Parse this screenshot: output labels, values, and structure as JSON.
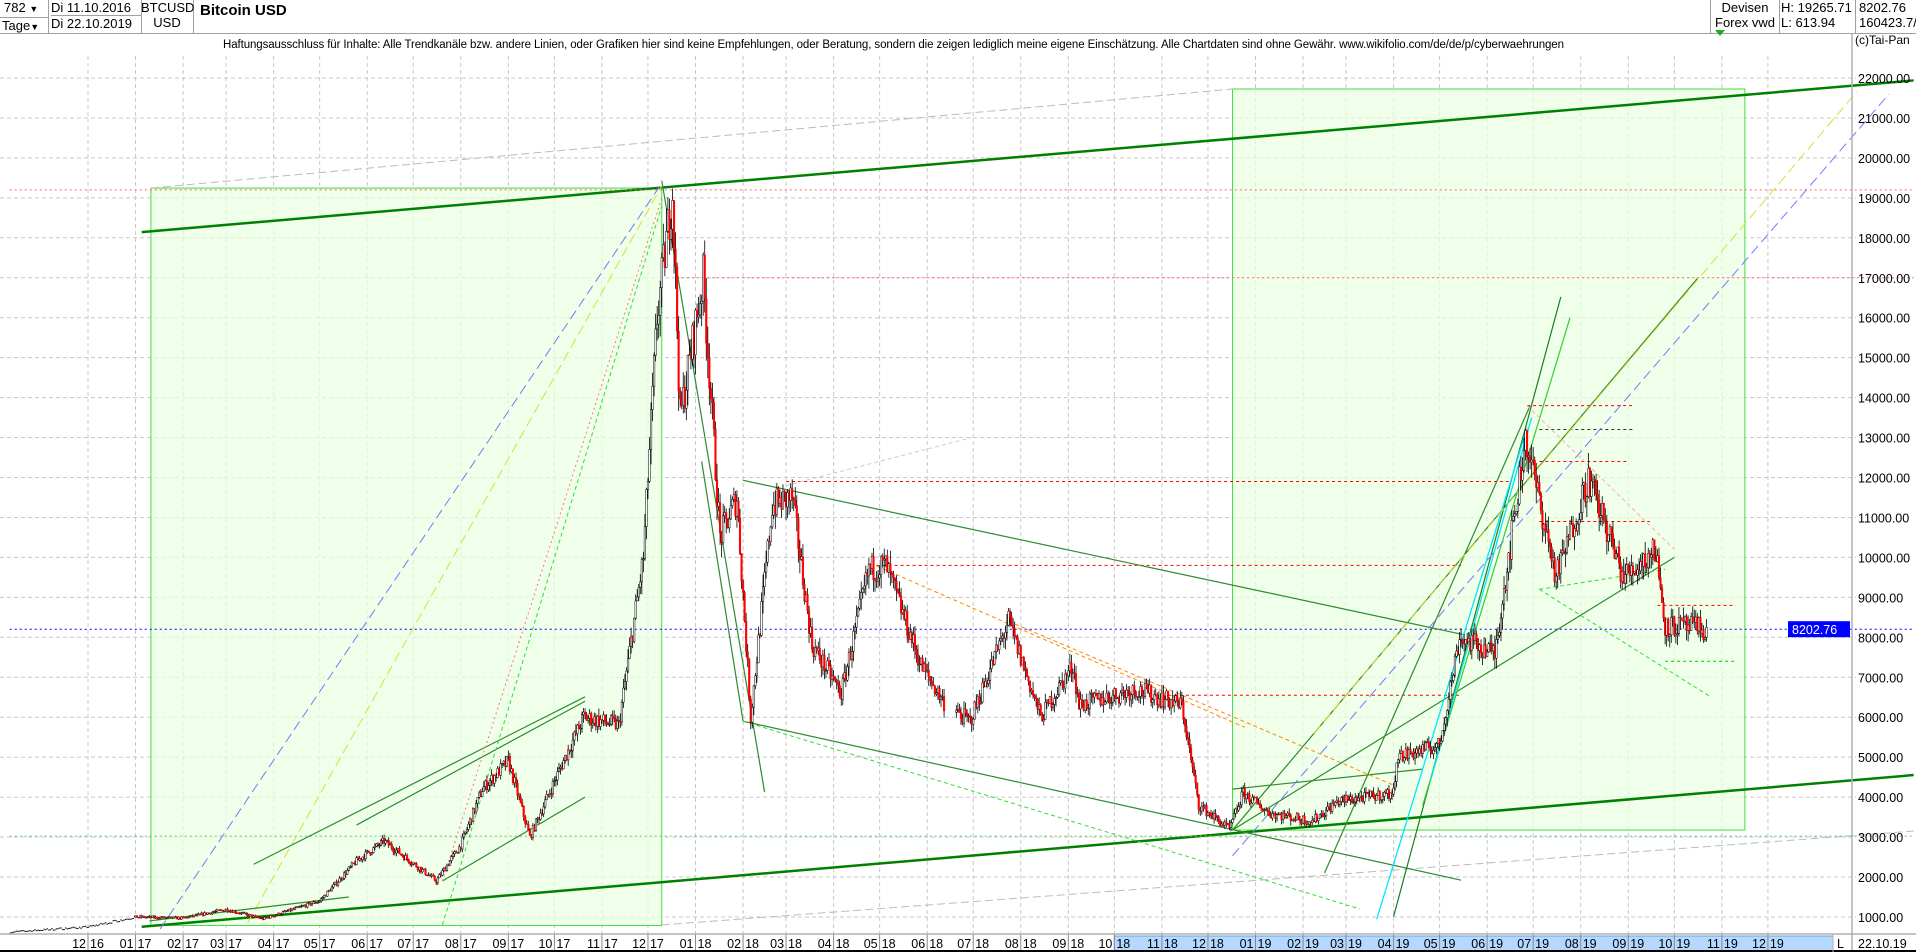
{
  "header": {
    "bars": "782",
    "period": "Tage",
    "date_from": "Di 11.10.2016",
    "date_to": "Di 22.10.2019",
    "symbol": "BTCUSD",
    "currency": "USD",
    "title": "Bitcoin USD",
    "market": "Devisen",
    "exchange": "Forex vwd",
    "high": "H: 19265.71",
    "low": "L: 613.94",
    "last": "8202.76",
    "volume": "160423.7/",
    "copyright": "(c)Tai-Pan"
  },
  "disclaimer": "Haftungsausschluss für Inhalte: Alle Trendkanäle bzw. andere Linien, oder Grafiken hier sind keine Empfehlungen, oder Beratung, sondern die zeigen lediglich meine eigene Einschätzung. Alle Chartdaten sind ohne Gewähr.  www.wikifolio.com/de/de/p/cyberwaehrungen",
  "footer": {
    "scale_mode": "L",
    "last_date": "22.10.19"
  },
  "chart_data": {
    "type": "candlestick",
    "title": "Bitcoin USD",
    "x_range": [
      "2016-10-11",
      "2020-03-05"
    ],
    "ylim": [
      600,
      22600
    ],
    "grid": true,
    "y_ticks": [
      "1000.00",
      "2000.00",
      "3000.00",
      "4000.00",
      "5000.00",
      "6000.00",
      "7000.00",
      "8000.00",
      "9000.00",
      "10000.00",
      "11000.00",
      "12000.00",
      "13000.00",
      "14000.00",
      "15000.00",
      "16000.00",
      "17000.00",
      "18000.00",
      "19000.00",
      "20000.00",
      "21000.00",
      "22000.00"
    ],
    "x_ticks": [
      {
        "date": "2016-12-01",
        "label": "12 16"
      },
      {
        "date": "2017-01-01",
        "label": "01 17"
      },
      {
        "date": "2017-02-01",
        "label": "02 17"
      },
      {
        "date": "2017-03-01",
        "label": "03 17"
      },
      {
        "date": "2017-04-01",
        "label": "04 17"
      },
      {
        "date": "2017-05-01",
        "label": "05 17"
      },
      {
        "date": "2017-06-01",
        "label": "06 17"
      },
      {
        "date": "2017-07-01",
        "label": "07 17"
      },
      {
        "date": "2017-08-01",
        "label": "08 17"
      },
      {
        "date": "2017-09-01",
        "label": "09 17"
      },
      {
        "date": "2017-10-01",
        "label": "10 17"
      },
      {
        "date": "2017-11-01",
        "label": "11 17"
      },
      {
        "date": "2017-12-01",
        "label": "12 17"
      },
      {
        "date": "2018-01-01",
        "label": "01 18"
      },
      {
        "date": "2018-02-01",
        "label": "02 18"
      },
      {
        "date": "2018-03-01",
        "label": "03 18"
      },
      {
        "date": "2018-04-01",
        "label": "04 18"
      },
      {
        "date": "2018-05-01",
        "label": "05 18"
      },
      {
        "date": "2018-06-01",
        "label": "06 18"
      },
      {
        "date": "2018-07-01",
        "label": "07 18"
      },
      {
        "date": "2018-08-01",
        "label": "08 18"
      },
      {
        "date": "2018-09-01",
        "label": "09 18"
      },
      {
        "date": "2018-10-01",
        "label": "10 18"
      },
      {
        "date": "2018-11-01",
        "label": "11 18"
      },
      {
        "date": "2018-12-01",
        "label": "12 18"
      },
      {
        "date": "2019-01-01",
        "label": "01 19"
      },
      {
        "date": "2019-02-01",
        "label": "02 19"
      },
      {
        "date": "2019-03-01",
        "label": "03 19"
      },
      {
        "date": "2019-04-01",
        "label": "04 19"
      },
      {
        "date": "2019-05-01",
        "label": "05 19"
      },
      {
        "date": "2019-06-01",
        "label": "06 19"
      },
      {
        "date": "2019-07-01",
        "label": "07 19"
      },
      {
        "date": "2019-08-01",
        "label": "08 19"
      },
      {
        "date": "2019-09-01",
        "label": "09 19"
      },
      {
        "date": "2019-10-01",
        "label": "10 19"
      },
      {
        "date": "2019-11-01",
        "label": "11 19"
      },
      {
        "date": "2019-12-01",
        "label": "12 19"
      }
    ],
    "highlight_range": [
      "2018-10-01",
      "2020-01-15"
    ],
    "last_price": 8202.76,
    "last_price_label": "8202.76",
    "price_path": [
      [
        "2016-10-11",
        620
      ],
      [
        "2016-12-01",
        750
      ],
      [
        "2017-01-01",
        1000
      ],
      [
        "2017-02-01",
        970
      ],
      [
        "2017-03-01",
        1190
      ],
      [
        "2017-03-25",
        950
      ],
      [
        "2017-05-01",
        1400
      ],
      [
        "2017-05-25",
        2400
      ],
      [
        "2017-06-12",
        2900
      ],
      [
        "2017-07-16",
        1900
      ],
      [
        "2017-08-01",
        2800
      ],
      [
        "2017-08-15",
        4200
      ],
      [
        "2017-09-01",
        4900
      ],
      [
        "2017-09-15",
        3000
      ],
      [
        "2017-10-01",
        4400
      ],
      [
        "2017-10-20",
        6000
      ],
      [
        "2017-11-12",
        5800
      ],
      [
        "2017-11-28",
        10000
      ],
      [
        "2017-12-07",
        16000
      ],
      [
        "2017-12-17",
        19200
      ],
      [
        "2017-12-22",
        13500
      ],
      [
        "2018-01-06",
        17000
      ],
      [
        "2018-01-17",
        10500
      ],
      [
        "2018-01-28",
        11500
      ],
      [
        "2018-02-06",
        6000
      ],
      [
        "2018-02-20",
        11300
      ],
      [
        "2018-03-05",
        11500
      ],
      [
        "2018-03-18",
        7800
      ],
      [
        "2018-04-06",
        6600
      ],
      [
        "2018-04-24",
        9700
      ],
      [
        "2018-05-05",
        9800
      ],
      [
        "2018-05-28",
        7300
      ],
      [
        "2018-06-13",
        6300
      ],
      [
        "2018-06-29",
        5900
      ],
      [
        "2018-07-24",
        8400
      ],
      [
        "2018-08-14",
        6000
      ],
      [
        "2018-09-04",
        7300
      ],
      [
        "2018-09-08",
        6300
      ],
      [
        "2018-10-15",
        6700
      ],
      [
        "2018-11-14",
        6300
      ],
      [
        "2018-11-25",
        3800
      ],
      [
        "2018-12-15",
        3200
      ],
      [
        "2018-12-24",
        4100
      ],
      [
        "2019-01-10",
        3600
      ],
      [
        "2019-02-07",
        3400
      ],
      [
        "2019-02-24",
        3900
      ],
      [
        "2019-04-01",
        4100
      ],
      [
        "2019-04-03",
        5000
      ],
      [
        "2019-05-01",
        5300
      ],
      [
        "2019-05-14",
        8000
      ],
      [
        "2019-06-06",
        7600
      ],
      [
        "2019-06-26",
        13000
      ],
      [
        "2019-07-16",
        9500
      ],
      [
        "2019-08-06",
        12000
      ],
      [
        "2019-08-29",
        9500
      ],
      [
        "2019-09-19",
        10200
      ],
      [
        "2019-09-25",
        8300
      ],
      [
        "2019-10-22",
        8200
      ]
    ],
    "colors": {
      "up": "#ffffff",
      "down": "#ff0000",
      "wick": "#000000",
      "last_price": "#0000ff",
      "box_fill": "#e8ffe0",
      "box_stroke": "#44dd44"
    },
    "boxes": [
      {
        "from": "2017-01-11",
        "to": "2017-12-10",
        "low": 787,
        "high": 19245
      },
      {
        "from": "2018-12-17",
        "to": "2019-11-16",
        "low": 3175,
        "high": 21725
      }
    ],
    "lines": [
      {
        "from": [
          "2017-01-05",
          18143
        ],
        "to": [
          "2020-03-05",
          21939
        ],
        "color": "#008000",
        "width": 2.5,
        "dash": ""
      },
      {
        "from": [
          "2017-01-05",
          756
        ],
        "to": [
          "2020-03-05",
          4552
        ],
        "color": "#008000",
        "width": 2.5,
        "dash": ""
      },
      {
        "from": [
          "2017-01-11",
          19245
        ],
        "to": [
          "2018-12-17",
          21725
        ],
        "color": "#bbbbbb",
        "width": 1,
        "dash": "8,4"
      },
      {
        "from": [
          "2017-12-10",
          800
        ],
        "to": [
          "2020-03-05",
          3150
        ],
        "color": "#bbbbbb",
        "width": 1,
        "dash": "8,4"
      },
      {
        "from": [
          "2016-10-11",
          19200
        ],
        "to": [
          "2020-03-05",
          19200
        ],
        "color": "#ff6666",
        "width": 1,
        "dash": "2,3"
      },
      {
        "from": [
          "2017-12-20",
          17000
        ],
        "to": [
          "2020-03-05",
          17000
        ],
        "color": "#ff6666",
        "width": 1,
        "dash": "2,3"
      },
      {
        "from": [
          "2016-10-11",
          3022
        ],
        "to": [
          "2020-03-05",
          3022
        ],
        "color": "#66cc66",
        "width": 1,
        "dash": "2,3"
      },
      {
        "from": [
          "2018-04-29",
          9800
        ],
        "to": [
          "2019-05-15",
          9800
        ],
        "color": "#ff0000",
        "width": 1,
        "dash": "3,3"
      },
      {
        "from": [
          "2018-11-01",
          6550
        ],
        "to": [
          "2019-05-15",
          6550
        ],
        "color": "#ff0000",
        "width": 1,
        "dash": "3,3"
      },
      {
        "from": [
          "2018-03-01",
          11900
        ],
        "to": [
          "2019-06-15",
          11900
        ],
        "color": "#ff0000",
        "width": 1,
        "dash": "3,3"
      },
      {
        "from": [
          "2019-06-27",
          13800
        ],
        "to": [
          "2019-09-05",
          13800
        ],
        "color": "#ff0000",
        "width": 1,
        "dash": "3,3"
      },
      {
        "from": [
          "2019-07-05",
          12400
        ],
        "to": [
          "2019-08-31",
          12400
        ],
        "color": "#ff0000",
        "width": 1,
        "dash": "3,3"
      },
      {
        "from": [
          "2019-07-05",
          13200
        ],
        "to": [
          "2019-09-05",
          13200
        ],
        "color": "#333333",
        "width": 1,
        "dash": "3,3"
      },
      {
        "from": [
          "2019-07-05",
          10900
        ],
        "to": [
          "2019-09-15",
          10900
        ],
        "color": "#ff0000",
        "width": 1,
        "dash": "3,3"
      },
      {
        "from": [
          "2019-09-20",
          8800
        ],
        "to": [
          "2019-11-10",
          8800
        ],
        "color": "#ff0000",
        "width": 1,
        "dash": "3,3"
      },
      {
        "from": [
          "2019-09-25",
          7400
        ],
        "to": [
          "2019-11-10",
          7400
        ],
        "color": "#00cc00",
        "width": 1,
        "dash": "3,3"
      },
      {
        "from": [
          "2016-10-11",
          8202.76
        ],
        "to": [
          "2020-03-05",
          8202.76
        ],
        "color": "#0000ff",
        "width": 1,
        "dash": "2,3"
      },
      {
        "from": [
          "2017-12-10",
          19429
        ],
        "to": [
          "2018-02-15",
          4124
        ],
        "color": "#2e8b2e",
        "width": 1.2,
        "dash": ""
      },
      {
        "from": [
          "2018-01-05",
          12400
        ],
        "to": [
          "2018-02-01",
          5899
        ],
        "color": "#2e8b2e",
        "width": 1.2,
        "dash": ""
      },
      {
        "from": [
          "2018-02-01",
          11929
        ],
        "to": [
          "2019-05-16",
          8072
        ],
        "color": "#2e8b2e",
        "width": 1.2,
        "dash": ""
      },
      {
        "from": [
          "2018-02-01",
          5899
        ],
        "to": [
          "2019-05-15",
          1920
        ],
        "color": "#2e8b2e",
        "width": 1.2,
        "dash": ""
      },
      {
        "from": [
          "2018-02-01",
          5899
        ],
        "to": [
          "2019-03-10",
          1200
        ],
        "color": "#33dd33",
        "width": 1,
        "dash": "4,3"
      },
      {
        "from": [
          "2018-12-17",
          3175
        ],
        "to": [
          "2019-10-16",
          16980
        ],
        "color": "#2e8b2e",
        "width": 1.2,
        "dash": ""
      },
      {
        "from": [
          "2018-12-17",
          3175
        ],
        "to": [
          "2019-10-01",
          10000
        ],
        "color": "#2e8b2e",
        "width": 1.2,
        "dash": ""
      },
      {
        "from": [
          "2018-12-17",
          4200
        ],
        "to": [
          "2019-04-20",
          4700
        ],
        "color": "#2e8b2e",
        "width": 1.2,
        "dash": ""
      },
      {
        "from": [
          "2019-04-01",
          1010
        ],
        "to": [
          "2019-07-19",
          16521
        ],
        "color": "#1e7b1e",
        "width": 1.2,
        "dash": ""
      },
      {
        "from": [
          "2019-04-20",
          3800
        ],
        "to": [
          "2019-07-25",
          16000
        ],
        "color": "#33cc33",
        "width": 1.2,
        "dash": ""
      },
      {
        "from": [
          "2019-03-21",
          940
        ],
        "to": [
          "2019-06-27",
          13245
        ],
        "color": "#00e5ff",
        "width": 1.3,
        "dash": ""
      },
      {
        "from": [
          "2019-04-25",
          4400
        ],
        "to": [
          "2019-06-30",
          13500
        ],
        "color": "#00e5ff",
        "width": 1.3,
        "dash": ""
      },
      {
        "from": [
          "2019-02-15",
          2100
        ],
        "to": [
          "2019-06-29",
          13800
        ],
        "color": "#2e8b2e",
        "width": 1.2,
        "dash": ""
      },
      {
        "from": [
          "2017-01-17",
          700
        ],
        "to": [
          "2017-12-10",
          19367
        ],
        "color": "#7777ff",
        "width": 1,
        "dash": "10,5"
      },
      {
        "from": [
          "2018-12-17",
          2532
        ],
        "to": [
          "2020-02-18",
          21602
        ],
        "color": "#7777ff",
        "width": 1,
        "dash": "10,5"
      },
      {
        "from": [
          "2017-03-15",
          848
        ],
        "to": [
          "2017-12-10",
          19300
        ],
        "color": "#dddd33",
        "width": 1,
        "dash": "10,5"
      },
      {
        "from": [
          "2019-02-08",
          5593
        ],
        "to": [
          "2020-01-28",
          21663
        ],
        "color": "#dddd33",
        "width": 1,
        "dash": "10,5"
      },
      {
        "from": [
          "2017-03-19",
          2318
        ],
        "to": [
          "2017-10-21",
          6511
        ],
        "color": "#2e8b2e",
        "width": 1.2,
        "dash": ""
      },
      {
        "from": [
          "2017-07-20",
          1900
        ],
        "to": [
          "2017-10-21",
          4000
        ],
        "color": "#2e8b2e",
        "width": 1.2,
        "dash": ""
      },
      {
        "from": [
          "2017-05-25",
          3300
        ],
        "to": [
          "2017-10-21",
          6400
        ],
        "color": "#2e8b2e",
        "width": 1.2,
        "dash": ""
      },
      {
        "from": [
          "2017-01-10",
          900
        ],
        "to": [
          "2017-05-20",
          1500
        ],
        "color": "#2e8b2e",
        "width": 1.2,
        "dash": ""
      },
      {
        "from": [
          "2017-07-20",
          800
        ],
        "to": [
          "2017-12-10",
          18800
        ],
        "color": "#33dd33",
        "width": 1,
        "dash": "4,3"
      },
      {
        "from": [
          "2017-07-20",
          1900
        ],
        "to": [
          "2017-12-10",
          19000
        ],
        "color": "#ff7777",
        "width": 1,
        "dash": "2,3"
      },
      {
        "from": [
          "2018-04-29",
          9787
        ],
        "to": [
          "2018-12-25",
          5746
        ],
        "color": "#ff8800",
        "width": 1,
        "dash": "4,3"
      },
      {
        "from": [
          "2018-07-24",
          8400
        ],
        "to": [
          "2019-04-01",
          4300
        ],
        "color": "#ff8800",
        "width": 1,
        "dash": "4,3"
      },
      {
        "from": [
          "2018-03-01",
          11800
        ],
        "to": [
          "2018-06-30",
          13000
        ],
        "color": "#cccccc",
        "width": 1,
        "dash": "4,3"
      },
      {
        "from": [
          "2019-06-27",
          13800
        ],
        "to": [
          "2019-10-01",
          10200
        ],
        "color": "#ffaaaa",
        "width": 1,
        "dash": "4,3"
      },
      {
        "from": [
          "2019-07-05",
          9200
        ],
        "to": [
          "2019-10-25",
          6500
        ],
        "color": "#33dd33",
        "width": 1,
        "dash": "4,3"
      },
      {
        "from": [
          "2019-07-05",
          9200
        ],
        "to": [
          "2019-09-25",
          9700
        ],
        "color": "#33dd33",
        "width": 1,
        "dash": "4,3"
      }
    ]
  }
}
